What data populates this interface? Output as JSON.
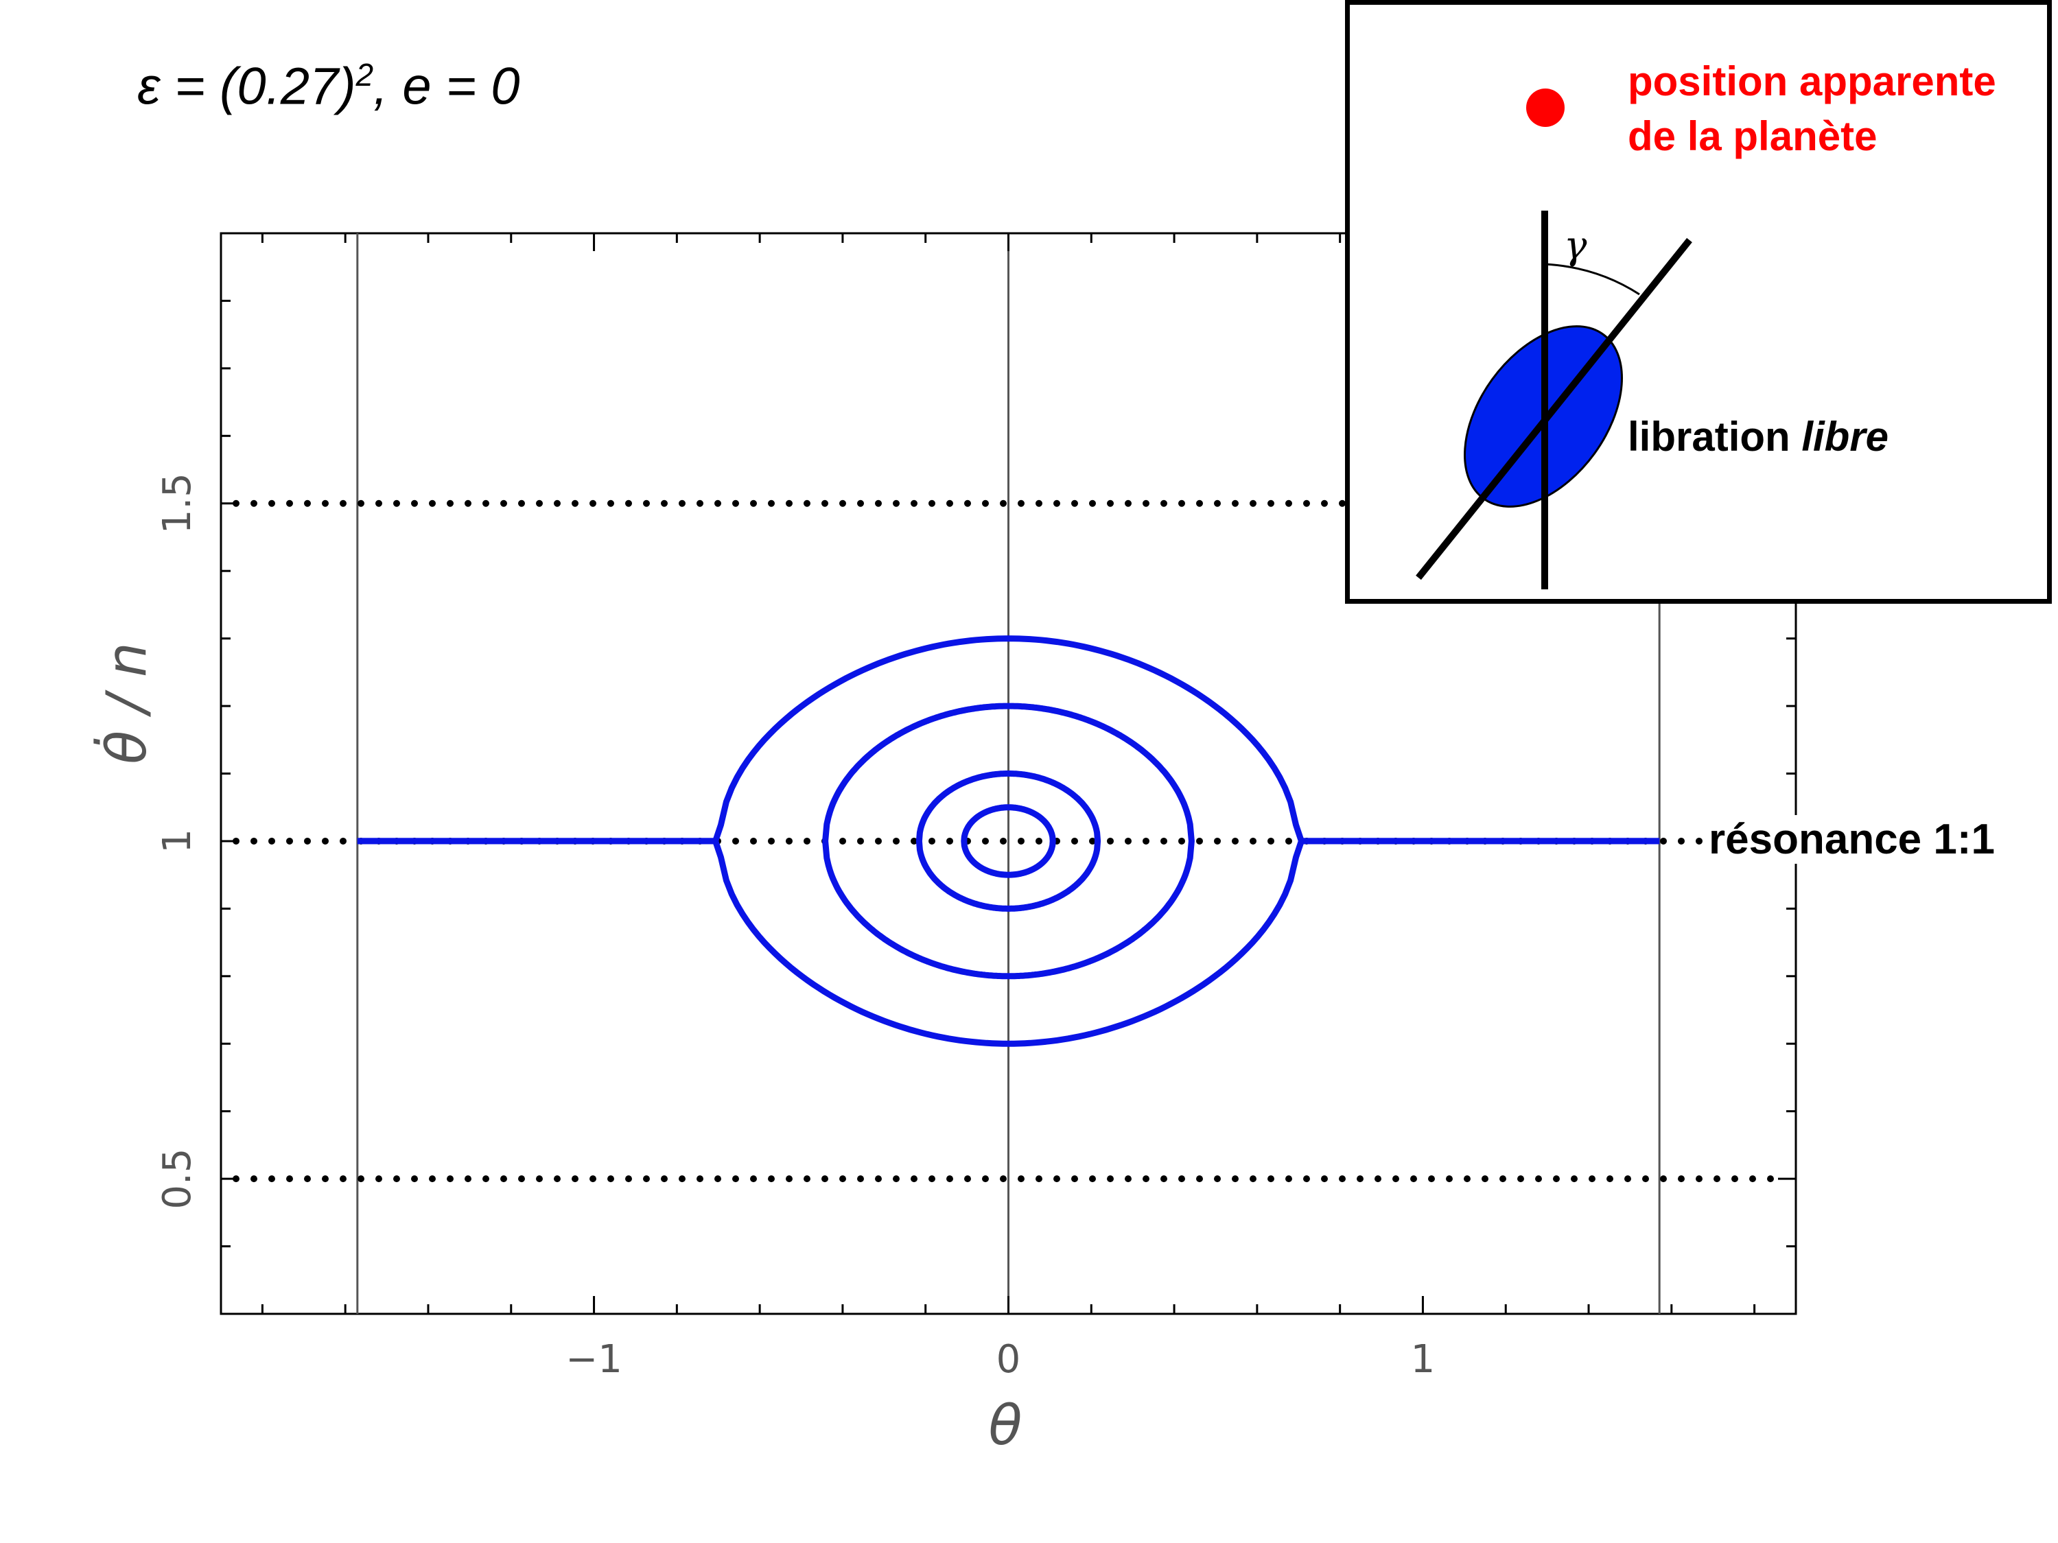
{
  "annotations": {
    "parameters_prefix": "ε = (0.27)",
    "parameters_exp": "2",
    "parameters_suffix": ", e = 0",
    "resonance_label": "résonance 1:1"
  },
  "inset": {
    "planet_label_line1": "position apparente",
    "planet_label_line2": "de la planète",
    "angle_label": "γ",
    "libration_label": "libration",
    "libration_label_italic": "libre",
    "colors": {
      "planet": "#ff0000",
      "body": "#0022ee"
    }
  },
  "chart_data": {
    "type": "line",
    "title": "",
    "xlabel": "θ",
    "ylabel": "θ̇ / n",
    "xlim": [
      -1.9,
      1.9
    ],
    "ylim": [
      0.3,
      1.9
    ],
    "xticks": [
      -1,
      0,
      1
    ],
    "xtick_labels": [
      "−1",
      "0",
      "1"
    ],
    "yticks": [
      0.5,
      1,
      1.5
    ],
    "ytick_labels": [
      "0.5",
      "1",
      "1.5"
    ],
    "grid": false,
    "vertical_lines_x": [
      -1.5708,
      0,
      1.5708
    ],
    "reference_lines": [
      {
        "y": 1.5,
        "x_range": [
          -1.9,
          1.9
        ],
        "style": "dotted"
      },
      {
        "y": 1.0,
        "x_range": [
          -1.9,
          1.9
        ],
        "style": "dotted"
      },
      {
        "y": 0.5,
        "x_range": [
          -1.9,
          1.9
        ],
        "style": "dotted"
      }
    ],
    "series": [
      {
        "kind": "closed",
        "A": 0.05
      },
      {
        "kind": "closed",
        "A": 0.1
      },
      {
        "kind": "closed",
        "A": 0.2
      },
      {
        "kind": "open",
        "A": 0.3
      }
    ],
    "curve_note": "trajectories: (θ̇/n − 1)² = A² − 0.2187·sin²θ",
    "epsilon": 0.0729,
    "colors": {
      "trajectory": "#0a14e6",
      "axes": "#000000",
      "reference": "#000000"
    }
  }
}
